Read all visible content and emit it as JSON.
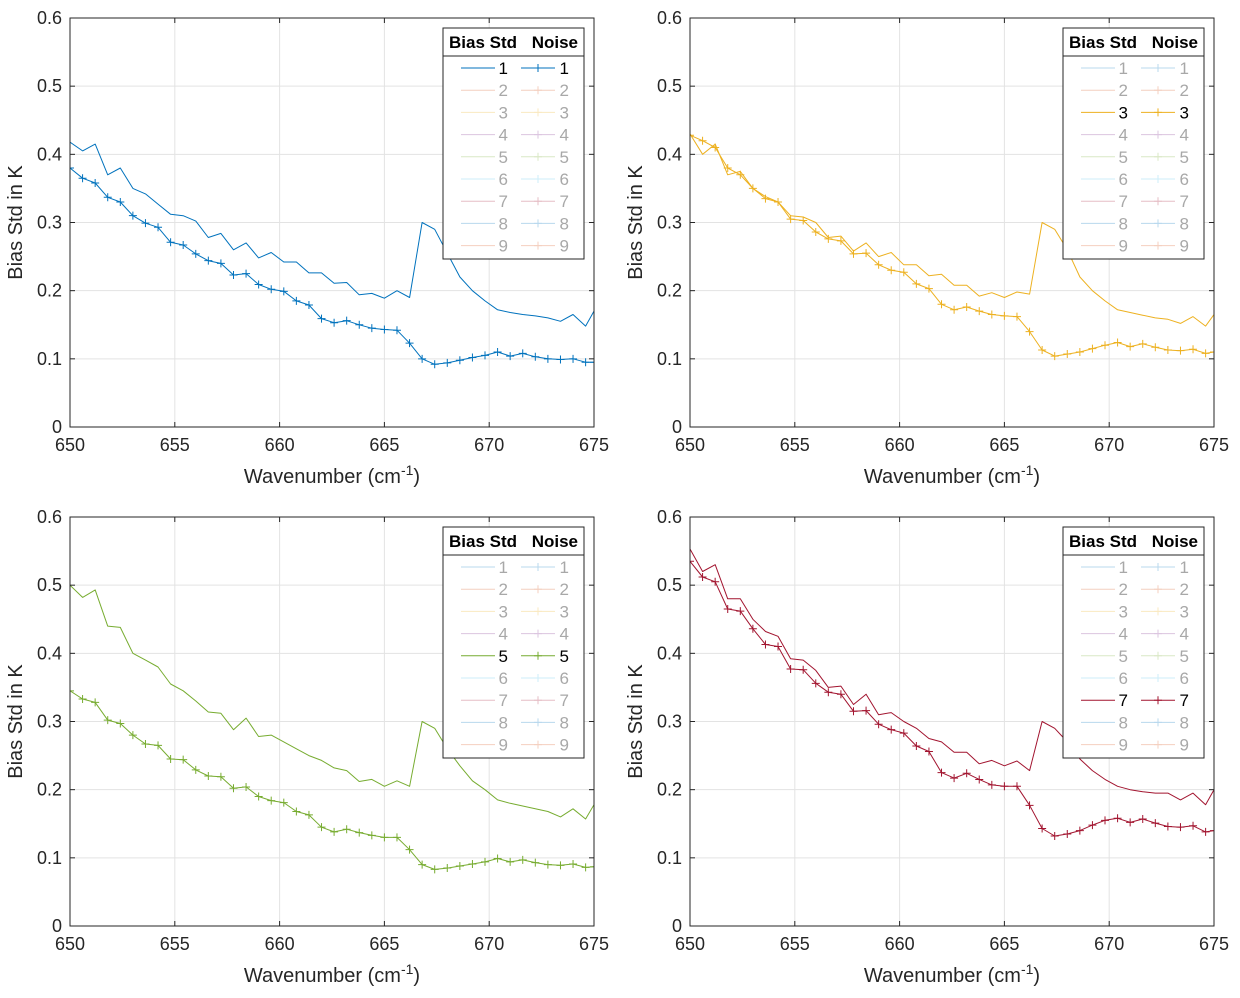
{
  "legend_headers": [
    "Bias Std",
    "Noise"
  ],
  "legend_entries": [
    "1",
    "2",
    "3",
    "4",
    "5",
    "6",
    "7",
    "8",
    "9"
  ],
  "colors": {
    "1": "#0072BD",
    "2": "#D95319",
    "3": "#EDB120",
    "4": "#7E2F8E",
    "5": "#77AC30",
    "6": "#4DBEEE",
    "7": "#A2142F",
    "8": "#0072BD",
    "9": "#D95319"
  },
  "chart_data": [
    {
      "type": "line",
      "highlight": "1",
      "xlabel": "Wavenumber (cm",
      "xlabel_sup": "-1",
      "xlabel_suffix": ")",
      "ylabel": "Bias Std in K",
      "xlim": [
        650,
        675
      ],
      "ylim": [
        0,
        0.6
      ],
      "xticks": [
        650,
        655,
        660,
        665,
        670,
        675
      ],
      "yticks": [
        0,
        0.1,
        0.2,
        0.3,
        0.4,
        0.5,
        0.6
      ],
      "grid": true,
      "legend_position": "top-right",
      "x": [
        650,
        650.6,
        651.2,
        651.8,
        652.4,
        653,
        653.6,
        654.2,
        654.8,
        655.4,
        656,
        656.6,
        657.2,
        657.8,
        658.4,
        659,
        659.6,
        660.2,
        660.8,
        661.4,
        662,
        662.6,
        663.2,
        663.8,
        664.4,
        665,
        665.6,
        666.2,
        666.8,
        667.4,
        668,
        668.6,
        669.2,
        669.8,
        670.4,
        671,
        671.6,
        672.2,
        672.8,
        673.4,
        674,
        674.6,
        675
      ],
      "series": [
        {
          "legend": "Bias Std",
          "marker": "none",
          "values": [
            0.418,
            0.405,
            0.415,
            0.37,
            0.38,
            0.35,
            0.342,
            0.327,
            0.312,
            0.31,
            0.302,
            0.278,
            0.284,
            0.26,
            0.27,
            0.248,
            0.256,
            0.242,
            0.242,
            0.226,
            0.226,
            0.211,
            0.212,
            0.194,
            0.196,
            0.189,
            0.2,
            0.19,
            0.3,
            0.29,
            0.255,
            0.22,
            0.2,
            0.185,
            0.172,
            0.168,
            0.165,
            0.163,
            0.16,
            0.155,
            0.165,
            0.148,
            0.17
          ]
        },
        {
          "legend": "Noise",
          "marker": "plus",
          "values": [
            0.38,
            0.365,
            0.358,
            0.337,
            0.33,
            0.31,
            0.299,
            0.293,
            0.271,
            0.267,
            0.254,
            0.244,
            0.24,
            0.223,
            0.225,
            0.209,
            0.202,
            0.199,
            0.185,
            0.179,
            0.159,
            0.153,
            0.156,
            0.15,
            0.145,
            0.143,
            0.142,
            0.123,
            0.1,
            0.092,
            0.094,
            0.098,
            0.102,
            0.105,
            0.11,
            0.104,
            0.108,
            0.103,
            0.1,
            0.099,
            0.1,
            0.095,
            0.095
          ]
        }
      ]
    },
    {
      "type": "line",
      "highlight": "3",
      "xlabel": "Wavenumber (cm",
      "xlabel_sup": "-1",
      "xlabel_suffix": ")",
      "ylabel": "Bias Std in K",
      "xlim": [
        650,
        675
      ],
      "ylim": [
        0,
        0.6
      ],
      "xticks": [
        650,
        655,
        660,
        665,
        670,
        675
      ],
      "yticks": [
        0,
        0.1,
        0.2,
        0.3,
        0.4,
        0.5,
        0.6
      ],
      "grid": true,
      "legend_position": "top-right",
      "x": [
        650,
        650.6,
        651.2,
        651.8,
        652.4,
        653,
        653.6,
        654.2,
        654.8,
        655.4,
        656,
        656.6,
        657.2,
        657.8,
        658.4,
        659,
        659.6,
        660.2,
        660.8,
        661.4,
        662,
        662.6,
        663.2,
        663.8,
        664.4,
        665,
        665.6,
        666.2,
        666.8,
        667.4,
        668,
        668.6,
        669.2,
        669.8,
        670.4,
        671,
        671.6,
        672.2,
        672.8,
        673.4,
        674,
        674.6,
        675
      ],
      "series": [
        {
          "legend": "Bias Std",
          "marker": "none",
          "values": [
            0.43,
            0.4,
            0.415,
            0.37,
            0.375,
            0.35,
            0.338,
            0.33,
            0.31,
            0.308,
            0.3,
            0.278,
            0.28,
            0.258,
            0.27,
            0.25,
            0.256,
            0.238,
            0.238,
            0.222,
            0.224,
            0.208,
            0.208,
            0.192,
            0.197,
            0.19,
            0.198,
            0.195,
            0.3,
            0.29,
            0.26,
            0.22,
            0.2,
            0.185,
            0.172,
            0.168,
            0.164,
            0.16,
            0.158,
            0.152,
            0.162,
            0.148,
            0.165
          ]
        },
        {
          "legend": "Noise",
          "marker": "plus",
          "values": [
            0.428,
            0.42,
            0.41,
            0.38,
            0.37,
            0.35,
            0.335,
            0.33,
            0.305,
            0.303,
            0.286,
            0.276,
            0.273,
            0.254,
            0.255,
            0.238,
            0.23,
            0.227,
            0.21,
            0.203,
            0.18,
            0.172,
            0.176,
            0.17,
            0.165,
            0.163,
            0.162,
            0.14,
            0.113,
            0.104,
            0.107,
            0.11,
            0.115,
            0.12,
            0.124,
            0.118,
            0.122,
            0.117,
            0.113,
            0.112,
            0.114,
            0.108,
            0.11
          ]
        }
      ]
    },
    {
      "type": "line",
      "highlight": "5",
      "xlabel": "Wavenumber (cm",
      "xlabel_sup": "-1",
      "xlabel_suffix": ")",
      "ylabel": "Bias Std in K",
      "xlim": [
        650,
        675
      ],
      "ylim": [
        0,
        0.6
      ],
      "xticks": [
        650,
        655,
        660,
        665,
        670,
        675
      ],
      "yticks": [
        0,
        0.1,
        0.2,
        0.3,
        0.4,
        0.5,
        0.6
      ],
      "grid": true,
      "legend_position": "top-right",
      "x": [
        650,
        650.6,
        651.2,
        651.8,
        652.4,
        653,
        653.6,
        654.2,
        654.8,
        655.4,
        656,
        656.6,
        657.2,
        657.8,
        658.4,
        659,
        659.6,
        660.2,
        660.8,
        661.4,
        662,
        662.6,
        663.2,
        663.8,
        664.4,
        665,
        665.6,
        666.2,
        666.8,
        667.4,
        668,
        668.6,
        669.2,
        669.8,
        670.4,
        671,
        671.6,
        672.2,
        672.8,
        673.4,
        674,
        674.6,
        675
      ],
      "series": [
        {
          "legend": "Bias Std",
          "marker": "none",
          "values": [
            0.5,
            0.482,
            0.493,
            0.44,
            0.438,
            0.4,
            0.39,
            0.38,
            0.355,
            0.345,
            0.33,
            0.314,
            0.312,
            0.288,
            0.305,
            0.278,
            0.28,
            0.27,
            0.26,
            0.25,
            0.243,
            0.232,
            0.228,
            0.212,
            0.215,
            0.205,
            0.213,
            0.205,
            0.3,
            0.29,
            0.26,
            0.235,
            0.213,
            0.2,
            0.185,
            0.18,
            0.176,
            0.172,
            0.168,
            0.16,
            0.172,
            0.157,
            0.178
          ]
        },
        {
          "legend": "Noise",
          "marker": "plus",
          "values": [
            0.345,
            0.333,
            0.328,
            0.302,
            0.297,
            0.28,
            0.267,
            0.265,
            0.245,
            0.244,
            0.229,
            0.22,
            0.219,
            0.202,
            0.204,
            0.19,
            0.184,
            0.181,
            0.168,
            0.163,
            0.145,
            0.138,
            0.142,
            0.137,
            0.133,
            0.13,
            0.13,
            0.112,
            0.09,
            0.083,
            0.085,
            0.088,
            0.091,
            0.094,
            0.099,
            0.094,
            0.097,
            0.093,
            0.09,
            0.089,
            0.091,
            0.086,
            0.087
          ]
        }
      ]
    },
    {
      "type": "line",
      "highlight": "7",
      "xlabel": "Wavenumber (cm",
      "xlabel_sup": "-1",
      "xlabel_suffix": ")",
      "ylabel": "Bias Std in K",
      "xlim": [
        650,
        675
      ],
      "ylim": [
        0,
        0.6
      ],
      "xticks": [
        650,
        655,
        660,
        665,
        670,
        675
      ],
      "yticks": [
        0,
        0.1,
        0.2,
        0.3,
        0.4,
        0.5,
        0.6
      ],
      "grid": true,
      "legend_position": "top-right",
      "x": [
        650,
        650.6,
        651.2,
        651.8,
        652.4,
        653,
        653.6,
        654.2,
        654.8,
        655.4,
        656,
        656.6,
        657.2,
        657.8,
        658.4,
        659,
        659.6,
        660.2,
        660.8,
        661.4,
        662,
        662.6,
        663.2,
        663.8,
        664.4,
        665,
        665.6,
        666.2,
        666.8,
        667.4,
        668,
        668.6,
        669.2,
        669.8,
        670.4,
        671,
        671.6,
        672.2,
        672.8,
        673.4,
        674,
        674.6,
        675
      ],
      "series": [
        {
          "legend": "Bias Std",
          "marker": "none",
          "values": [
            0.553,
            0.52,
            0.53,
            0.48,
            0.48,
            0.45,
            0.432,
            0.425,
            0.392,
            0.39,
            0.375,
            0.35,
            0.352,
            0.325,
            0.34,
            0.31,
            0.313,
            0.3,
            0.29,
            0.275,
            0.27,
            0.255,
            0.255,
            0.238,
            0.243,
            0.235,
            0.242,
            0.228,
            0.3,
            0.29,
            0.27,
            0.245,
            0.228,
            0.215,
            0.205,
            0.2,
            0.197,
            0.195,
            0.195,
            0.185,
            0.195,
            0.178,
            0.2
          ]
        },
        {
          "legend": "Noise",
          "marker": "plus",
          "values": [
            0.535,
            0.512,
            0.505,
            0.465,
            0.462,
            0.436,
            0.413,
            0.41,
            0.377,
            0.376,
            0.356,
            0.343,
            0.34,
            0.315,
            0.316,
            0.296,
            0.288,
            0.283,
            0.264,
            0.256,
            0.225,
            0.217,
            0.224,
            0.215,
            0.207,
            0.205,
            0.205,
            0.177,
            0.143,
            0.132,
            0.135,
            0.14,
            0.148,
            0.155,
            0.158,
            0.152,
            0.157,
            0.151,
            0.146,
            0.145,
            0.147,
            0.138,
            0.14
          ]
        }
      ]
    }
  ]
}
